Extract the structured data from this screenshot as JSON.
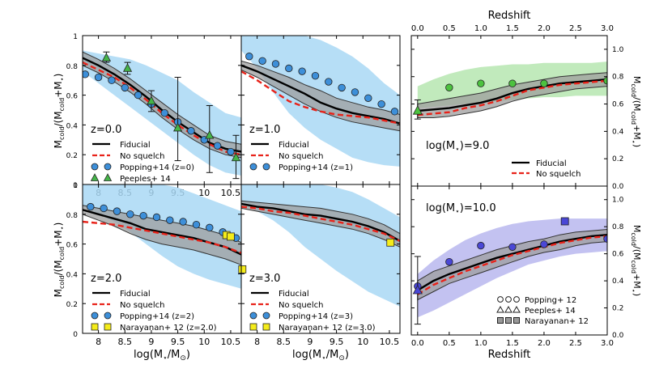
{
  "chart_data": {
    "type": "line",
    "figure": "Cold gas fraction vs stellar mass (left panels) and vs redshift (right panels)",
    "shared_labels": {
      "left_ylabel_main": "M",
      "left_ylabel_sub": "cold",
      "left_ylabel_mid": "/(M",
      "left_ylabel_sub2": "cold",
      "left_ylabel_plus": "+M",
      "left_ylabel_star": "⋆",
      "left_ylabel_end": ")",
      "mass_xlabel_a": "log(M",
      "mass_xlabel_star": "⋆",
      "mass_xlabel_b": "/M",
      "mass_xlabel_sun": "⊙",
      "mass_xlabel_c": ")",
      "redshift_xlabel": "Redshift"
    },
    "mass_panels": [
      {
        "label": "z=0.0",
        "xlim": [
          7.7,
          10.7
        ],
        "ylim": [
          0,
          1.0
        ],
        "xticks": [
          "8",
          "8.5",
          "9",
          "9.5",
          "10",
          "10.5"
        ],
        "yticks": [
          "0",
          "0.2",
          "0.4",
          "0.6",
          "0.8",
          "1"
        ],
        "fiducial": {
          "x": [
            7.7,
            8.0,
            8.3,
            8.6,
            8.9,
            9.2,
            9.5,
            9.8,
            10.1,
            10.4,
            10.7
          ],
          "y": [
            0.85,
            0.8,
            0.74,
            0.67,
            0.59,
            0.5,
            0.42,
            0.35,
            0.28,
            0.24,
            0.22
          ]
        },
        "fid_lower": [
          0.8,
          0.75,
          0.69,
          0.62,
          0.54,
          0.45,
          0.37,
          0.3,
          0.24,
          0.2,
          0.18
        ],
        "fid_upper": [
          0.89,
          0.84,
          0.78,
          0.71,
          0.63,
          0.55,
          0.47,
          0.4,
          0.33,
          0.29,
          0.27
        ],
        "nosquelch": {
          "x": [
            7.7,
            8.0,
            8.3,
            8.6,
            8.9,
            9.2,
            9.5,
            9.8,
            10.1,
            10.4,
            10.7
          ],
          "y": [
            0.82,
            0.77,
            0.72,
            0.65,
            0.57,
            0.48,
            0.4,
            0.33,
            0.27,
            0.22,
            0.2
          ]
        },
        "popping_band_lower": [
          0.76,
          0.68,
          0.6,
          0.52,
          0.44,
          0.36,
          0.28,
          0.2,
          0.13,
          0.08,
          0.06
        ],
        "popping_band_upper": [
          0.9,
          0.88,
          0.86,
          0.84,
          0.8,
          0.75,
          0.7,
          0.62,
          0.55,
          0.48,
          0.45
        ],
        "popping": {
          "x": [
            7.75,
            8.0,
            8.25,
            8.5,
            8.75,
            9.0,
            9.25,
            9.5,
            9.75,
            10.0,
            10.25,
            10.5
          ],
          "y": [
            0.74,
            0.72,
            0.7,
            0.65,
            0.6,
            0.54,
            0.48,
            0.42,
            0.36,
            0.3,
            0.26,
            0.22
          ]
        },
        "peeples": {
          "x": [
            8.15,
            8.55,
            9.0,
            9.5,
            10.1,
            10.6
          ],
          "y": [
            0.85,
            0.78,
            0.56,
            0.38,
            0.33,
            0.18
          ],
          "err_lo": [
            0.82,
            0.74,
            0.49,
            0.16,
            0.08,
            0.04
          ],
          "err_hi": [
            0.89,
            0.82,
            0.63,
            0.72,
            0.53,
            0.33
          ]
        },
        "legend": [
          "Fiducial",
          "No squelch",
          "Popping+14 (z=0)",
          "Peeples+ 14"
        ]
      },
      {
        "label": "z=1.0",
        "xlim": [
          7.7,
          10.7
        ],
        "ylim": [
          0,
          1.0
        ],
        "xticks": [],
        "yticks": [],
        "fiducial": {
          "x": [
            7.7,
            8.0,
            8.3,
            8.6,
            8.9,
            9.2,
            9.5,
            9.8,
            10.1,
            10.4,
            10.7
          ],
          "y": [
            0.8,
            0.76,
            0.71,
            0.66,
            0.61,
            0.55,
            0.51,
            0.48,
            0.46,
            0.44,
            0.41
          ]
        },
        "fid_lower": [
          0.77,
          0.72,
          0.66,
          0.6,
          0.54,
          0.49,
          0.45,
          0.42,
          0.4,
          0.38,
          0.36
        ],
        "fid_upper": [
          0.83,
          0.8,
          0.76,
          0.72,
          0.67,
          0.63,
          0.58,
          0.55,
          0.52,
          0.5,
          0.47
        ],
        "nosquelch": {
          "x": [
            7.7,
            8.0,
            8.3,
            8.6,
            8.9,
            9.2,
            9.5,
            9.8,
            10.1,
            10.4,
            10.7
          ],
          "y": [
            0.76,
            0.7,
            0.63,
            0.56,
            0.52,
            0.49,
            0.47,
            0.46,
            0.45,
            0.43,
            0.41
          ]
        },
        "popping_band_lower": [
          0.9,
          0.78,
          0.62,
          0.48,
          0.38,
          0.3,
          0.24,
          0.18,
          0.15,
          0.13,
          0.12
        ],
        "popping_band_upper": [
          1.0,
          1.0,
          1.0,
          1.0,
          1.0,
          0.97,
          0.92,
          0.86,
          0.78,
          0.68,
          0.6
        ],
        "popping": {
          "x": [
            7.85,
            8.1,
            8.35,
            8.6,
            8.85,
            9.1,
            9.35,
            9.6,
            9.85,
            10.1,
            10.35,
            10.6
          ],
          "y": [
            0.86,
            0.83,
            0.81,
            0.78,
            0.76,
            0.73,
            0.69,
            0.65,
            0.62,
            0.58,
            0.54,
            0.49
          ]
        },
        "legend": [
          "Fiducial",
          "No squelch",
          "Popping+14 (z=1)"
        ]
      },
      {
        "label": "z=2.0",
        "xlim": [
          7.7,
          10.7
        ],
        "ylim": [
          0,
          1.0
        ],
        "xticks": [
          "8",
          "8.5",
          "9",
          "9.5",
          "10",
          "10.5"
        ],
        "yticks": [
          "0",
          "0.2",
          "0.4",
          "0.6",
          "0.8",
          "1"
        ],
        "fiducial": {
          "x": [
            7.7,
            8.0,
            8.3,
            8.6,
            8.9,
            9.2,
            9.5,
            9.8,
            10.1,
            10.4,
            10.7
          ],
          "y": [
            0.83,
            0.8,
            0.77,
            0.74,
            0.7,
            0.68,
            0.66,
            0.64,
            0.61,
            0.58,
            0.53
          ]
        },
        "fid_lower": [
          0.8,
          0.76,
          0.72,
          0.67,
          0.63,
          0.6,
          0.58,
          0.56,
          0.53,
          0.5,
          0.46
        ],
        "fid_upper": [
          0.86,
          0.84,
          0.82,
          0.8,
          0.78,
          0.76,
          0.74,
          0.72,
          0.69,
          0.66,
          0.61
        ],
        "nosquelch": {
          "x": [
            7.7,
            8.0,
            8.3,
            8.6,
            8.9,
            9.2,
            9.5,
            9.8,
            10.1,
            10.4,
            10.7
          ],
          "y": [
            0.75,
            0.74,
            0.73,
            0.71,
            0.69,
            0.67,
            0.65,
            0.63,
            0.61,
            0.58,
            0.54
          ]
        },
        "popping_band_lower": [
          0.85,
          0.8,
          0.75,
          0.68,
          0.6,
          0.52,
          0.45,
          0.4,
          0.36,
          0.33,
          0.3
        ],
        "popping_band_upper": [
          1.0,
          1.0,
          1.0,
          1.0,
          1.0,
          1.0,
          0.98,
          0.94,
          0.9,
          0.86,
          0.82
        ],
        "popping": {
          "x": [
            7.85,
            8.1,
            8.35,
            8.6,
            8.85,
            9.1,
            9.35,
            9.6,
            9.85,
            10.1,
            10.35,
            10.6
          ],
          "y": [
            0.85,
            0.84,
            0.82,
            0.8,
            0.79,
            0.78,
            0.76,
            0.75,
            0.73,
            0.71,
            0.68,
            0.64
          ]
        },
        "narayanan": {
          "x": [
            10.42,
            10.5,
            10.72
          ],
          "y": [
            0.66,
            0.65,
            0.43
          ]
        },
        "legend": [
          "Fiducial",
          "No squelch",
          "Popping+14 (z=2)",
          "Narayanan+ 12 (z=2.0)"
        ]
      },
      {
        "label": "z=3.0",
        "xlim": [
          7.7,
          10.7
        ],
        "ylim": [
          0,
          1.0
        ],
        "xticks": [
          "8",
          "8.5",
          "9",
          "9.5",
          "10",
          "10.5"
        ],
        "yticks": [],
        "fiducial": {
          "x": [
            7.7,
            8.0,
            8.3,
            8.6,
            8.9,
            9.2,
            9.5,
            9.8,
            10.1,
            10.4,
            10.7
          ],
          "y": [
            0.87,
            0.85,
            0.84,
            0.82,
            0.8,
            0.79,
            0.77,
            0.75,
            0.72,
            0.68,
            0.62
          ]
        },
        "fid_lower": [
          0.84,
          0.82,
          0.8,
          0.78,
          0.76,
          0.74,
          0.72,
          0.7,
          0.67,
          0.63,
          0.58
        ],
        "fid_upper": [
          0.89,
          0.88,
          0.87,
          0.86,
          0.85,
          0.84,
          0.82,
          0.8,
          0.77,
          0.73,
          0.67
        ],
        "nosquelch": {
          "x": [
            7.7,
            8.0,
            8.3,
            8.6,
            8.9,
            9.2,
            9.5,
            9.8,
            10.1,
            10.4,
            10.7
          ],
          "y": [
            0.85,
            0.84,
            0.82,
            0.81,
            0.79,
            0.77,
            0.75,
            0.73,
            0.7,
            0.67,
            0.62
          ]
        },
        "popping_band_lower": [
          0.88,
          0.82,
          0.76,
          0.68,
          0.58,
          0.5,
          0.42,
          0.35,
          0.28,
          0.23,
          0.18
        ],
        "popping_band_upper": [
          1.0,
          1.0,
          1.0,
          1.0,
          1.0,
          1.0,
          0.98,
          0.95,
          0.9,
          0.84,
          0.78
        ],
        "narayanan": {
          "x": [
            10.52
          ],
          "y": [
            0.61
          ]
        },
        "legend": [
          "Fiducial",
          "No squelch",
          "Popping+14 (z=3)",
          "Narayanan+ 12 (z=3.0)"
        ]
      }
    ],
    "redshift_axis": {
      "xlim": [
        -0.1,
        3.0
      ],
      "ylim": [
        0,
        1.1
      ],
      "xticks": [
        "0.0",
        "0.5",
        "1.0",
        "1.5",
        "2.0",
        "2.5",
        "3.0"
      ],
      "yticks": [
        "0.0",
        "0.2",
        "0.4",
        "0.6",
        "0.8",
        "1.0"
      ],
      "top_label": "Redshift"
    },
    "redshift_panels": [
      {
        "label_a": "log(M",
        "label_star": "⋆",
        "label_b": ")=9.0",
        "band_color": "#b6e6b0",
        "obs_color": "#4cc23f",
        "fiducial": {
          "x": [
            0.0,
            0.25,
            0.5,
            0.75,
            1.0,
            1.25,
            1.5,
            1.75,
            2.0,
            2.25,
            2.5,
            2.75,
            3.0
          ],
          "y": [
            0.55,
            0.56,
            0.57,
            0.59,
            0.61,
            0.64,
            0.68,
            0.71,
            0.73,
            0.75,
            0.76,
            0.77,
            0.78
          ]
        },
        "fid_lower": [
          0.5,
          0.5,
          0.51,
          0.53,
          0.55,
          0.58,
          0.62,
          0.65,
          0.67,
          0.69,
          0.71,
          0.72,
          0.73
        ],
        "fid_upper": [
          0.6,
          0.62,
          0.64,
          0.66,
          0.68,
          0.71,
          0.74,
          0.76,
          0.78,
          0.8,
          0.81,
          0.82,
          0.83
        ],
        "nosquelch": {
          "x": [
            0.0,
            0.25,
            0.5,
            0.75,
            1.0,
            1.25,
            1.5,
            1.75,
            2.0,
            2.25,
            2.5,
            2.75,
            3.0
          ],
          "y": [
            0.52,
            0.53,
            0.54,
            0.57,
            0.59,
            0.62,
            0.66,
            0.7,
            0.72,
            0.74,
            0.75,
            0.76,
            0.77
          ]
        },
        "band_lower": [
          0.57,
          0.58,
          0.59,
          0.6,
          0.61,
          0.62,
          0.63,
          0.64,
          0.65,
          0.65,
          0.66,
          0.66,
          0.66
        ],
        "band_upper": [
          0.73,
          0.78,
          0.82,
          0.85,
          0.87,
          0.88,
          0.89,
          0.89,
          0.9,
          0.9,
          0.9,
          0.9,
          0.91
        ],
        "popping": {
          "x": [
            0.5,
            1.0,
            1.5,
            2.0,
            3.0
          ],
          "y": [
            0.72,
            0.75,
            0.75,
            0.75,
            0.77
          ]
        },
        "peeples": {
          "x": [
            0.0
          ],
          "y": [
            0.55
          ],
          "err_lo": [
            0.49
          ],
          "err_hi": [
            0.63
          ]
        },
        "legend": [
          "Fiducial",
          "No squelch"
        ]
      },
      {
        "label_a": "log(M",
        "label_star": "⋆",
        "label_b": ")=10.0",
        "band_color": "#b9b7ee",
        "obs_color": "#4a47d6",
        "fiducial": {
          "x": [
            0.0,
            0.25,
            0.5,
            0.75,
            1.0,
            1.25,
            1.5,
            1.75,
            2.0,
            2.25,
            2.5,
            2.75,
            3.0
          ],
          "y": [
            0.33,
            0.4,
            0.45,
            0.49,
            0.53,
            0.57,
            0.6,
            0.63,
            0.66,
            0.69,
            0.71,
            0.73,
            0.74
          ]
        },
        "fid_lower": [
          0.26,
          0.32,
          0.38,
          0.42,
          0.46,
          0.5,
          0.54,
          0.58,
          0.61,
          0.63,
          0.66,
          0.68,
          0.69
        ],
        "fid_upper": [
          0.4,
          0.47,
          0.51,
          0.55,
          0.59,
          0.63,
          0.66,
          0.69,
          0.71,
          0.74,
          0.76,
          0.77,
          0.78
        ],
        "nosquelch": {
          "x": [
            0.0,
            0.25,
            0.5,
            0.75,
            1.0,
            1.25,
            1.5,
            1.75,
            2.0,
            2.25,
            2.5,
            2.75,
            3.0
          ],
          "y": [
            0.3,
            0.37,
            0.42,
            0.47,
            0.51,
            0.55,
            0.59,
            0.62,
            0.65,
            0.68,
            0.7,
            0.72,
            0.73
          ]
        },
        "band_lower": [
          0.13,
          0.18,
          0.24,
          0.3,
          0.36,
          0.42,
          0.47,
          0.52,
          0.55,
          0.58,
          0.6,
          0.61,
          0.62
        ],
        "band_upper": [
          0.45,
          0.55,
          0.63,
          0.7,
          0.75,
          0.79,
          0.82,
          0.84,
          0.85,
          0.86,
          0.86,
          0.86,
          0.86
        ],
        "popping": {
          "x": [
            0.0,
            0.5,
            1.0,
            1.5,
            2.0,
            3.0
          ],
          "y": [
            0.36,
            0.54,
            0.66,
            0.65,
            0.67,
            0.71
          ]
        },
        "peeples": {
          "x": [
            0.0
          ],
          "y": [
            0.33
          ],
          "err_lo": [
            0.08
          ],
          "err_hi": [
            0.58
          ]
        },
        "narayanan": {
          "x": [
            2.33
          ],
          "y": [
            0.84
          ]
        },
        "legend": [
          "Popping+ 12",
          "Peeples+ 14",
          "Narayanan+ 12"
        ]
      }
    ],
    "colors": {
      "fiducial": "#000000",
      "nosquelch": "#e8231a",
      "popping_fill": "#a9d8f5",
      "popping_marker": "#3d8fd9",
      "fid_band": "#9e9e9e",
      "peeples_marker": "#45b549",
      "narayanan_marker": "#f5ec1a",
      "redshift_grey": "#999999"
    }
  }
}
